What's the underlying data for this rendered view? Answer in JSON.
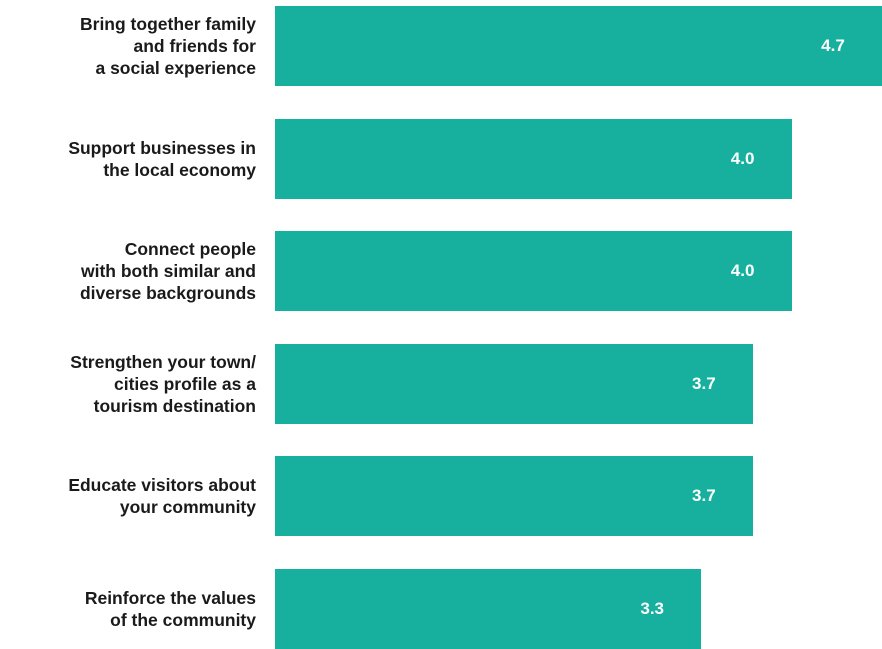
{
  "chart_data": {
    "type": "bar",
    "orientation": "horizontal",
    "categories": [
      "Bring together family\nand friends for\na social experience",
      "Support businesses in\nthe local economy",
      "Connect people\nwith both similar and\ndiverse backgrounds",
      "Strengthen your town/\ncities profile as a\ntourism destination",
      "Educate visitors about\nyour community",
      "Reinforce the values\nof the community"
    ],
    "values": [
      4.7,
      4.0,
      4.0,
      3.7,
      3.7,
      3.3
    ],
    "value_labels": [
      "4.7",
      "4.0",
      "4.0",
      "3.7",
      "3.7",
      "3.3"
    ],
    "bar_color": "#17b09e",
    "label_color": "#1a1a1a",
    "value_label_color": "#ffffff",
    "xlim": [
      0,
      4.7
    ],
    "grid": false,
    "legend": "none"
  }
}
